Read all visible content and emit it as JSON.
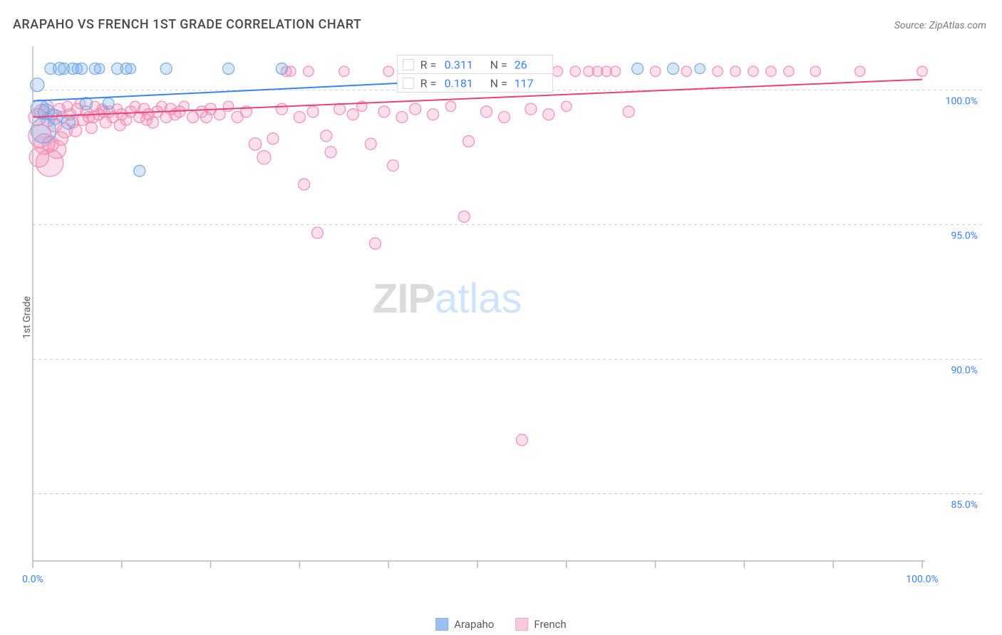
{
  "title": "ARAPAHO VS FRENCH 1ST GRADE CORRELATION CHART",
  "source_prefix": "Source: ",
  "source_name": "ZipAtlas.com",
  "y_axis_label": "1st Grade",
  "watermark": {
    "part1": "ZIP",
    "part2": "atlas"
  },
  "chart": {
    "type": "scatter",
    "xlim": [
      0,
      100
    ],
    "ylim": [
      82.5,
      101.5
    ],
    "x_tick_positions": [
      0,
      10,
      20,
      30,
      40,
      50,
      60,
      70,
      80,
      90,
      100
    ],
    "x_tick_labeled": {
      "0": "0.0%",
      "100": "100.0%"
    },
    "y_ticks": [
      85,
      90,
      95,
      100
    ],
    "y_tick_labels": [
      "85.0%",
      "90.0%",
      "95.0%",
      "100.0%"
    ],
    "grid_color": "#d0d0d0",
    "axis_color": "#b8b8b8",
    "tick_label_color": "#3b82f6",
    "background_color": "#ffffff",
    "series": [
      {
        "id": "arapaho",
        "label": "Arapaho",
        "fill": "#6fa8e8",
        "fill_opacity": 0.28,
        "stroke": "#6fa8e8",
        "stroke_opacity": 0.9,
        "marker_stroke_width": 1.3,
        "base_radius": 8,
        "trend": {
          "x1": 0,
          "y1": 99.6,
          "x2": 100,
          "y2": 101.2,
          "color": "#3b82f6",
          "width": 2
        },
        "stats": {
          "R": "0.311",
          "N": "26"
        },
        "points": [
          {
            "x": 0.5,
            "y": 100.2,
            "s": 1.2
          },
          {
            "x": 0.8,
            "y": 99.3,
            "s": 1.6
          },
          {
            "x": 1.2,
            "y": 98.5,
            "s": 2.2
          },
          {
            "x": 1.5,
            "y": 99.2,
            "s": 1.4
          },
          {
            "x": 2.0,
            "y": 100.8,
            "s": 1.0
          },
          {
            "x": 2.5,
            "y": 99.0,
            "s": 1.3
          },
          {
            "x": 3.0,
            "y": 100.8,
            "s": 1.1
          },
          {
            "x": 3.5,
            "y": 100.8,
            "s": 1.0
          },
          {
            "x": 4.0,
            "y": 98.8,
            "s": 1.2
          },
          {
            "x": 4.5,
            "y": 100.8,
            "s": 1.0
          },
          {
            "x": 5.0,
            "y": 100.8,
            "s": 0.9
          },
          {
            "x": 5.5,
            "y": 100.8,
            "s": 1.0
          },
          {
            "x": 6.0,
            "y": 99.5,
            "s": 1.1
          },
          {
            "x": 7.0,
            "y": 100.8,
            "s": 1.0
          },
          {
            "x": 7.5,
            "y": 100.8,
            "s": 0.9
          },
          {
            "x": 8.5,
            "y": 99.5,
            "s": 1.0
          },
          {
            "x": 9.5,
            "y": 100.8,
            "s": 1.0
          },
          {
            "x": 10.5,
            "y": 100.8,
            "s": 1.0
          },
          {
            "x": 11.0,
            "y": 100.8,
            "s": 0.9
          },
          {
            "x": 12.0,
            "y": 97.0,
            "s": 1.0
          },
          {
            "x": 15.0,
            "y": 100.8,
            "s": 1.0
          },
          {
            "x": 22.0,
            "y": 100.8,
            "s": 1.0
          },
          {
            "x": 28.0,
            "y": 100.8,
            "s": 1.0
          },
          {
            "x": 68.0,
            "y": 100.8,
            "s": 1.0
          },
          {
            "x": 72.0,
            "y": 100.8,
            "s": 1.0
          },
          {
            "x": 75.0,
            "y": 100.8,
            "s": 0.9
          }
        ]
      },
      {
        "id": "french",
        "label": "French",
        "fill": "#f28bb2",
        "fill_opacity": 0.28,
        "stroke": "#f28bb2",
        "stroke_opacity": 0.9,
        "marker_stroke_width": 1.3,
        "base_radius": 8,
        "trend": {
          "x1": 0,
          "y1": 99.0,
          "x2": 100,
          "y2": 100.4,
          "color": "#ec407a",
          "width": 2
        },
        "stats": {
          "R": "0.181",
          "N": "117"
        },
        "points": [
          {
            "x": 0.5,
            "y": 99.0,
            "s": 1.5
          },
          {
            "x": 0.8,
            "y": 98.3,
            "s": 2.0
          },
          {
            "x": 1.0,
            "y": 99.2,
            "s": 1.3
          },
          {
            "x": 1.3,
            "y": 98.0,
            "s": 1.8
          },
          {
            "x": 1.6,
            "y": 99.4,
            "s": 1.1
          },
          {
            "x": 1.9,
            "y": 97.3,
            "s": 2.4
          },
          {
            "x": 2.2,
            "y": 99.1,
            "s": 1.0
          },
          {
            "x": 2.5,
            "y": 98.7,
            "s": 1.2
          },
          {
            "x": 2.7,
            "y": 97.8,
            "s": 1.6
          },
          {
            "x": 3.0,
            "y": 99.3,
            "s": 1.0
          },
          {
            "x": 3.3,
            "y": 99.0,
            "s": 1.0
          },
          {
            "x": 3.6,
            "y": 98.5,
            "s": 1.3
          },
          {
            "x": 3.9,
            "y": 99.4,
            "s": 0.9
          },
          {
            "x": 4.2,
            "y": 99.1,
            "s": 1.0
          },
          {
            "x": 4.5,
            "y": 98.8,
            "s": 1.0
          },
          {
            "x": 5.0,
            "y": 99.3,
            "s": 1.0
          },
          {
            "x": 5.3,
            "y": 99.5,
            "s": 0.9
          },
          {
            "x": 5.6,
            "y": 98.9,
            "s": 1.0
          },
          {
            "x": 6.0,
            "y": 99.2,
            "s": 1.0
          },
          {
            "x": 6.3,
            "y": 99.0,
            "s": 1.0
          },
          {
            "x": 6.6,
            "y": 98.6,
            "s": 1.0
          },
          {
            "x": 7.0,
            "y": 99.4,
            "s": 0.9
          },
          {
            "x": 7.4,
            "y": 99.1,
            "s": 1.0
          },
          {
            "x": 7.8,
            "y": 99.3,
            "s": 0.9
          },
          {
            "x": 8.2,
            "y": 98.8,
            "s": 1.0
          },
          {
            "x": 8.6,
            "y": 99.2,
            "s": 1.0
          },
          {
            "x": 9.0,
            "y": 99.0,
            "s": 1.0
          },
          {
            "x": 9.5,
            "y": 99.3,
            "s": 0.9
          },
          {
            "x": 10.0,
            "y": 99.1,
            "s": 1.0
          },
          {
            "x": 10.5,
            "y": 98.9,
            "s": 1.0
          },
          {
            "x": 11.0,
            "y": 99.2,
            "s": 1.0
          },
          {
            "x": 11.5,
            "y": 99.4,
            "s": 0.9
          },
          {
            "x": 12.0,
            "y": 99.0,
            "s": 1.0
          },
          {
            "x": 12.5,
            "y": 99.3,
            "s": 1.0
          },
          {
            "x": 13.0,
            "y": 99.1,
            "s": 1.0
          },
          {
            "x": 13.5,
            "y": 98.8,
            "s": 1.0
          },
          {
            "x": 14.0,
            "y": 99.2,
            "s": 1.0
          },
          {
            "x": 14.5,
            "y": 99.4,
            "s": 0.9
          },
          {
            "x": 15.0,
            "y": 99.0,
            "s": 1.0
          },
          {
            "x": 15.5,
            "y": 99.3,
            "s": 1.0
          },
          {
            "x": 16.0,
            "y": 99.1,
            "s": 1.0
          },
          {
            "x": 17.0,
            "y": 99.4,
            "s": 0.9
          },
          {
            "x": 18.0,
            "y": 99.0,
            "s": 1.0
          },
          {
            "x": 19.0,
            "y": 99.2,
            "s": 1.0
          },
          {
            "x": 20.0,
            "y": 99.3,
            "s": 1.0
          },
          {
            "x": 21.0,
            "y": 99.1,
            "s": 1.0
          },
          {
            "x": 22.0,
            "y": 99.4,
            "s": 0.9
          },
          {
            "x": 23.0,
            "y": 99.0,
            "s": 1.0
          },
          {
            "x": 24.0,
            "y": 99.2,
            "s": 1.0
          },
          {
            "x": 25.0,
            "y": 98.0,
            "s": 1.1
          },
          {
            "x": 26.0,
            "y": 97.5,
            "s": 1.2
          },
          {
            "x": 27.0,
            "y": 98.2,
            "s": 1.0
          },
          {
            "x": 28.0,
            "y": 99.3,
            "s": 1.0
          },
          {
            "x": 29.0,
            "y": 100.7,
            "s": 0.9
          },
          {
            "x": 30.0,
            "y": 99.0,
            "s": 1.0
          },
          {
            "x": 30.5,
            "y": 96.5,
            "s": 1.0
          },
          {
            "x": 31.5,
            "y": 99.2,
            "s": 1.0
          },
          {
            "x": 32.0,
            "y": 94.7,
            "s": 1.0
          },
          {
            "x": 33.0,
            "y": 98.3,
            "s": 1.0
          },
          {
            "x": 33.5,
            "y": 97.7,
            "s": 1.0
          },
          {
            "x": 34.5,
            "y": 99.3,
            "s": 1.0
          },
          {
            "x": 35.0,
            "y": 100.7,
            "s": 0.9
          },
          {
            "x": 36.0,
            "y": 99.1,
            "s": 1.0
          },
          {
            "x": 37.0,
            "y": 99.4,
            "s": 0.9
          },
          {
            "x": 38.0,
            "y": 98.0,
            "s": 1.0
          },
          {
            "x": 38.5,
            "y": 94.3,
            "s": 1.0
          },
          {
            "x": 39.5,
            "y": 99.2,
            "s": 1.0
          },
          {
            "x": 40.0,
            "y": 100.7,
            "s": 0.9
          },
          {
            "x": 40.5,
            "y": 97.2,
            "s": 1.0
          },
          {
            "x": 41.5,
            "y": 99.0,
            "s": 1.0
          },
          {
            "x": 42.5,
            "y": 100.7,
            "s": 0.9
          },
          {
            "x": 43.0,
            "y": 99.3,
            "s": 1.0
          },
          {
            "x": 44.0,
            "y": 100.7,
            "s": 0.9
          },
          {
            "x": 45.0,
            "y": 99.1,
            "s": 1.0
          },
          {
            "x": 46.0,
            "y": 100.7,
            "s": 0.9
          },
          {
            "x": 47.0,
            "y": 99.4,
            "s": 0.9
          },
          {
            "x": 48.0,
            "y": 100.7,
            "s": 0.9
          },
          {
            "x": 49.0,
            "y": 98.1,
            "s": 1.0
          },
          {
            "x": 50.0,
            "y": 100.7,
            "s": 0.9
          },
          {
            "x": 51.0,
            "y": 99.2,
            "s": 1.0
          },
          {
            "x": 52.0,
            "y": 100.7,
            "s": 0.9
          },
          {
            "x": 53.0,
            "y": 99.0,
            "s": 1.0
          },
          {
            "x": 54.0,
            "y": 100.7,
            "s": 0.9
          },
          {
            "x": 55.0,
            "y": 87.0,
            "s": 1.0
          },
          {
            "x": 56.0,
            "y": 99.3,
            "s": 1.0
          },
          {
            "x": 57.0,
            "y": 100.7,
            "s": 0.9
          },
          {
            "x": 58.0,
            "y": 99.1,
            "s": 1.0
          },
          {
            "x": 59.0,
            "y": 100.7,
            "s": 0.9
          },
          {
            "x": 60.0,
            "y": 99.4,
            "s": 0.9
          },
          {
            "x": 61.0,
            "y": 100.7,
            "s": 0.9
          },
          {
            "x": 62.5,
            "y": 100.7,
            "s": 0.9
          },
          {
            "x": 63.5,
            "y": 100.7,
            "s": 0.9
          },
          {
            "x": 64.5,
            "y": 100.7,
            "s": 0.9
          },
          {
            "x": 65.5,
            "y": 100.7,
            "s": 0.9
          },
          {
            "x": 67.0,
            "y": 99.2,
            "s": 1.0
          },
          {
            "x": 70.0,
            "y": 100.7,
            "s": 0.9
          },
          {
            "x": 73.5,
            "y": 100.7,
            "s": 0.9
          },
          {
            "x": 77.0,
            "y": 100.7,
            "s": 0.9
          },
          {
            "x": 79.0,
            "y": 100.7,
            "s": 0.9
          },
          {
            "x": 81.0,
            "y": 100.7,
            "s": 0.9
          },
          {
            "x": 83.0,
            "y": 100.7,
            "s": 0.9
          },
          {
            "x": 85.0,
            "y": 100.7,
            "s": 0.9
          },
          {
            "x": 88.0,
            "y": 100.7,
            "s": 0.9
          },
          {
            "x": 93.0,
            "y": 100.7,
            "s": 0.9
          },
          {
            "x": 100.0,
            "y": 100.7,
            "s": 0.9
          },
          {
            "x": 48.5,
            "y": 95.3,
            "s": 1.0
          },
          {
            "x": 28.5,
            "y": 100.7,
            "s": 0.9
          },
          {
            "x": 31.0,
            "y": 100.7,
            "s": 0.9
          },
          {
            "x": 6.8,
            "y": 99.0,
            "s": 1.0
          },
          {
            "x": 8.0,
            "y": 99.2,
            "s": 1.0
          },
          {
            "x": 16.5,
            "y": 99.2,
            "s": 1.0
          },
          {
            "x": 19.5,
            "y": 99.0,
            "s": 1.0
          },
          {
            "x": 4.8,
            "y": 98.5,
            "s": 1.1
          },
          {
            "x": 2.0,
            "y": 98.0,
            "s": 1.4
          },
          {
            "x": 0.7,
            "y": 97.5,
            "s": 1.7
          },
          {
            "x": 1.7,
            "y": 98.9,
            "s": 1.2
          },
          {
            "x": 3.2,
            "y": 98.2,
            "s": 1.2
          },
          {
            "x": 9.8,
            "y": 98.7,
            "s": 1.0
          },
          {
            "x": 12.8,
            "y": 98.9,
            "s": 1.0
          }
        ]
      }
    ]
  },
  "stat_box": {
    "row_labels": {
      "R": "R =",
      "N": "N ="
    }
  },
  "legend_bottom": {
    "items": [
      {
        "label": "Arapaho",
        "fill": "#6fa8e8",
        "stroke": "#5b8fd1"
      },
      {
        "label": "French",
        "fill": "#f7b6ce",
        "stroke": "#e88aaf"
      }
    ]
  }
}
